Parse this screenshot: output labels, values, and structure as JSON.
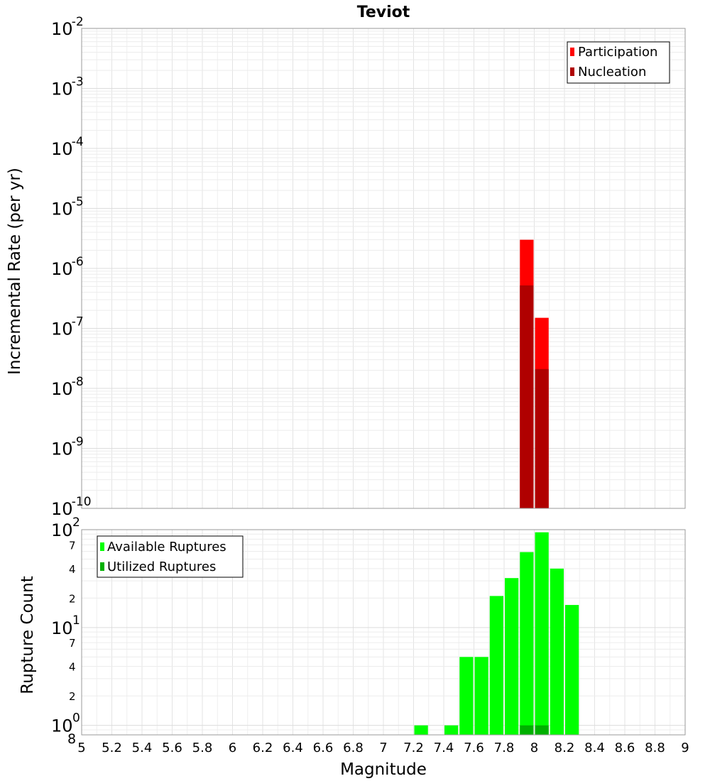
{
  "chart_data": [
    {
      "type": "bar",
      "scale": "log",
      "title": "Teviot",
      "xlabel": "",
      "ylabel": "Incremental Rate (per yr)",
      "xlim": [
        5,
        9
      ],
      "ylim": [
        1e-10,
        0.01
      ],
      "y_tick_labels": [
        {
          "value": 1e-10,
          "base": "10",
          "exp": "-10"
        },
        {
          "value": 1e-09,
          "base": "10",
          "exp": "-9"
        },
        {
          "value": 1e-08,
          "base": "10",
          "exp": "-8"
        },
        {
          "value": 1e-07,
          "base": "10",
          "exp": "-7"
        },
        {
          "value": 1e-06,
          "base": "10",
          "exp": "-6"
        },
        {
          "value": 1e-05,
          "base": "10",
          "exp": "-5"
        },
        {
          "value": 0.0001,
          "base": "10",
          "exp": "-4"
        },
        {
          "value": 0.001,
          "base": "10",
          "exp": "-3"
        },
        {
          "value": 0.01,
          "base": "10",
          "exp": "-2"
        }
      ],
      "bin_width": 0.1,
      "legend_position": "top-right",
      "series": [
        {
          "name": "Participation",
          "color": "#ff0000",
          "x": [
            7.95,
            8.05
          ],
          "values": [
            3e-06,
            1.5e-07
          ]
        },
        {
          "name": "Nucleation",
          "color": "#b00000",
          "x": [
            7.95,
            8.05
          ],
          "values": [
            5.2e-07,
            2.1e-08
          ]
        }
      ]
    },
    {
      "type": "bar",
      "scale": "log",
      "title": "",
      "xlabel": "Magnitude",
      "ylabel": "Rupture Count",
      "xlim": [
        5,
        9
      ],
      "ylim": [
        0.8,
        100
      ],
      "x_ticks": [
        "5",
        "5.2",
        "5.4",
        "5.6",
        "5.8",
        "6",
        "6.2",
        "6.4",
        "6.6",
        "6.8",
        "7",
        "7.2",
        "7.4",
        "7.6",
        "7.8",
        "8",
        "8.2",
        "8.4",
        "8.6",
        "8.8",
        "9"
      ],
      "y_tick_labels": [
        {
          "value": 100,
          "base": "10",
          "exp": "2"
        },
        {
          "value": 70,
          "base": "",
          "exp": "7"
        },
        {
          "value": 40,
          "base": "",
          "exp": "4"
        },
        {
          "value": 20,
          "base": "",
          "exp": "2"
        },
        {
          "value": 10,
          "base": "10",
          "exp": "1"
        },
        {
          "value": 7,
          "base": "",
          "exp": "7"
        },
        {
          "value": 4,
          "base": "",
          "exp": "4"
        },
        {
          "value": 2,
          "base": "",
          "exp": "2"
        },
        {
          "value": 1,
          "base": "10",
          "exp": "0"
        },
        {
          "value": 0.8,
          "base": "8",
          "exp": ""
        }
      ],
      "bin_width": 0.1,
      "legend_position": "top-left",
      "series": [
        {
          "name": "Available Ruptures",
          "color": "#00ff00",
          "x": [
            7.25,
            7.45,
            7.55,
            7.65,
            7.75,
            7.85,
            7.95,
            8.05,
            8.15,
            8.25
          ],
          "values": [
            1,
            1,
            5,
            5,
            21,
            32,
            59,
            94,
            40,
            17
          ]
        },
        {
          "name": "Utilized Ruptures",
          "color": "#00b000",
          "x": [
            7.95,
            8.05
          ],
          "values": [
            1,
            1
          ]
        }
      ]
    }
  ]
}
